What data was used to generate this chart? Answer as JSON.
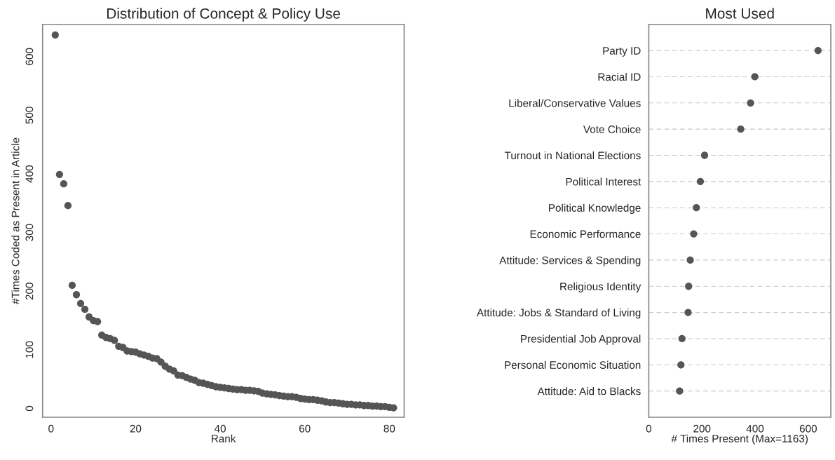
{
  "chart_data": [
    {
      "type": "scatter",
      "title": "Distribution of Concept & Policy Use",
      "xlabel": "Rank",
      "ylabel": "#Times Coded as Present in Article",
      "x": [
        1,
        2,
        3,
        4,
        5,
        6,
        7,
        8,
        9,
        10,
        11,
        12,
        13,
        14,
        15,
        16,
        17,
        18,
        19,
        20,
        21,
        22,
        23,
        24,
        25,
        26,
        27,
        28,
        29,
        30,
        31,
        32,
        33,
        34,
        35,
        36,
        37,
        38,
        39,
        40,
        41,
        42,
        43,
        44,
        45,
        46,
        47,
        48,
        49,
        50,
        51,
        52,
        53,
        54,
        55,
        56,
        57,
        58,
        59,
        60,
        61,
        62,
        63,
        64,
        65,
        66,
        67,
        68,
        69,
        70,
        71,
        72,
        73,
        74,
        75,
        76,
        77,
        78,
        79,
        80,
        81
      ],
      "series": [
        {
          "color": "#555555",
          "values": [
            637,
            399,
            383,
            346,
            210,
            194,
            179,
            169,
            156,
            150,
            148,
            125,
            121,
            119,
            116,
            106,
            104,
            98,
            97,
            96,
            93,
            91,
            89,
            86,
            85,
            79,
            72,
            67,
            64,
            57,
            56,
            53,
            50,
            48,
            44,
            43,
            41,
            39,
            37,
            36,
            35,
            34,
            33,
            32,
            32,
            31,
            31,
            30,
            29,
            26,
            25,
            24,
            23,
            22,
            21,
            20,
            20,
            19,
            17,
            16,
            15,
            15,
            14,
            13,
            11,
            10,
            10,
            9,
            8,
            7,
            7,
            6,
            6,
            5,
            5,
            4,
            4,
            3,
            3,
            2,
            1
          ]
        }
      ],
      "xlim": [
        -2,
        83.5
      ],
      "xticks": [
        0,
        20,
        40,
        60,
        80
      ],
      "ylim": [
        -15,
        655
      ],
      "yticks": [
        0,
        100,
        200,
        300,
        400,
        500,
        600
      ],
      "grid": false,
      "marker": "circle"
    },
    {
      "type": "scatter",
      "orientation": "horizontal",
      "title": "Most Used",
      "xlabel": "# Times Present (Max=1163)",
      "categories": [
        "Party ID",
        "Racial ID",
        "Liberal/Conservative Values",
        "Vote Choice",
        "Turnout in National Elections",
        "Political Interest",
        "Political Knowledge",
        "Economic Performance",
        "Attitude: Services & Spending",
        "Religious Identity",
        "Attitude: Jobs & Standard of Living",
        "Presidential Job Approval",
        "Personal Economic Situation",
        "Attitude: Aid to Blacks"
      ],
      "series": [
        {
          "color": "#555555",
          "values": [
            637,
            399,
            383,
            346,
            210,
            194,
            179,
            169,
            156,
            150,
            148,
            125,
            121,
            116
          ]
        }
      ],
      "xlim": [
        0,
        685
      ],
      "xticks": [
        0,
        200,
        400,
        600
      ],
      "grid": "y",
      "marker": "circle"
    }
  ]
}
